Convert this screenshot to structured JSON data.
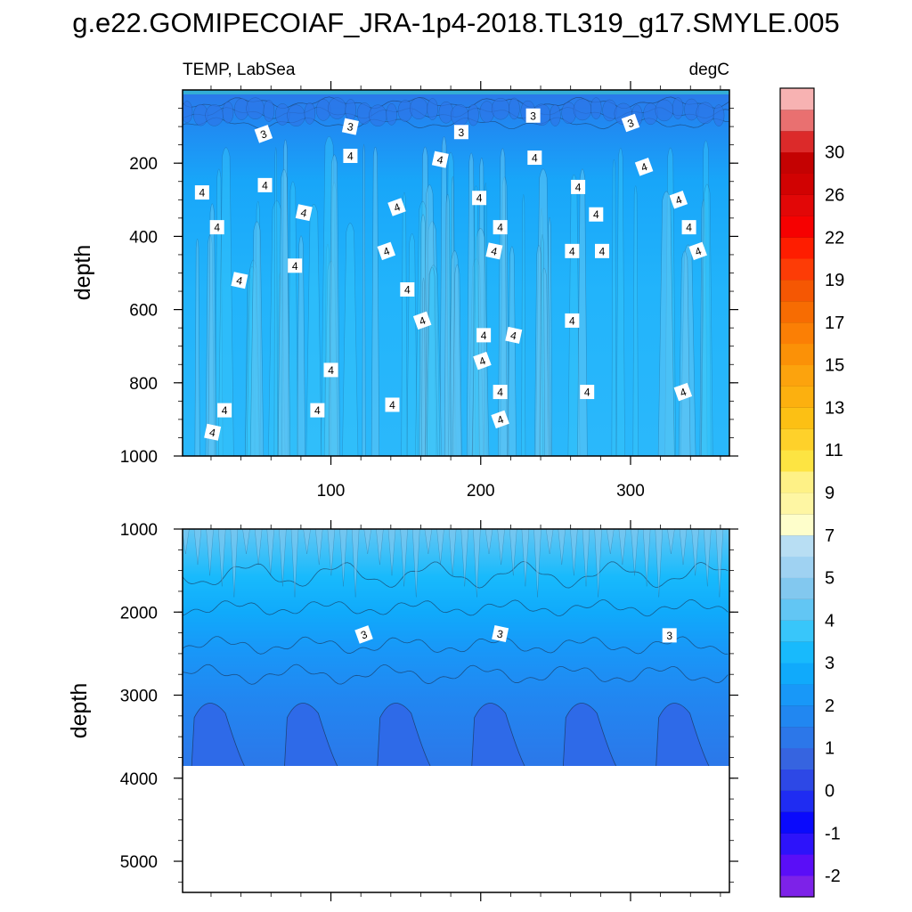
{
  "title": "g.e22.GOMIPECOIAF_JRA-1p4-2018.TL319_g17.SMYLE.005",
  "chart_data": [
    {
      "type": "heatmap",
      "name": "upper",
      "left_label": "TEMP, LabSea",
      "right_label": "degC",
      "ylabel": "depth",
      "xlim": [
        1,
        366
      ],
      "ylim": [
        1000,
        0
      ],
      "x_ticks": [
        100,
        200,
        300
      ],
      "y_ticks": [
        200,
        400,
        600,
        800,
        1000
      ],
      "field": "nearly uniform 3-4 degC with vertical streaks (seasonal signal)",
      "contour_labels": [
        {
          "x": 55,
          "y": 120,
          "text": "3"
        },
        {
          "x": 113,
          "y": 100,
          "text": "3"
        },
        {
          "x": 187,
          "y": 115,
          "text": "3"
        },
        {
          "x": 235,
          "y": 70,
          "text": "3"
        },
        {
          "x": 300,
          "y": 90,
          "text": "3"
        },
        {
          "x": 113,
          "y": 180,
          "text": "4"
        },
        {
          "x": 173,
          "y": 190,
          "text": "4"
        },
        {
          "x": 236,
          "y": 185,
          "text": "4"
        },
        {
          "x": 309,
          "y": 210,
          "text": "4"
        },
        {
          "x": 14,
          "y": 280,
          "text": "4"
        },
        {
          "x": 56,
          "y": 260,
          "text": "4"
        },
        {
          "x": 82,
          "y": 335,
          "text": "4"
        },
        {
          "x": 144,
          "y": 320,
          "text": "4"
        },
        {
          "x": 199,
          "y": 295,
          "text": "4"
        },
        {
          "x": 265,
          "y": 265,
          "text": "4"
        },
        {
          "x": 277,
          "y": 340,
          "text": "4"
        },
        {
          "x": 332,
          "y": 300,
          "text": "4"
        },
        {
          "x": 24,
          "y": 375,
          "text": "4"
        },
        {
          "x": 213,
          "y": 375,
          "text": "4"
        },
        {
          "x": 339,
          "y": 375,
          "text": "4"
        },
        {
          "x": 137,
          "y": 440,
          "text": "4"
        },
        {
          "x": 209,
          "y": 440,
          "text": "4"
        },
        {
          "x": 261,
          "y": 440,
          "text": "4"
        },
        {
          "x": 281,
          "y": 440,
          "text": "4"
        },
        {
          "x": 345,
          "y": 440,
          "text": "4"
        },
        {
          "x": 76,
          "y": 480,
          "text": "4"
        },
        {
          "x": 39,
          "y": 520,
          "text": "4"
        },
        {
          "x": 151,
          "y": 545,
          "text": "4"
        },
        {
          "x": 161,
          "y": 630,
          "text": "4"
        },
        {
          "x": 261,
          "y": 630,
          "text": "4"
        },
        {
          "x": 202,
          "y": 670,
          "text": "4"
        },
        {
          "x": 222,
          "y": 670,
          "text": "4"
        },
        {
          "x": 201,
          "y": 740,
          "text": "4"
        },
        {
          "x": 100,
          "y": 765,
          "text": "4"
        },
        {
          "x": 213,
          "y": 825,
          "text": "4"
        },
        {
          "x": 271,
          "y": 825,
          "text": "4"
        },
        {
          "x": 335,
          "y": 825,
          "text": "4"
        },
        {
          "x": 141,
          "y": 860,
          "text": "4"
        },
        {
          "x": 29,
          "y": 875,
          "text": "4"
        },
        {
          "x": 91,
          "y": 875,
          "text": "4"
        },
        {
          "x": 213,
          "y": 900,
          "text": "4"
        },
        {
          "x": 21,
          "y": 935,
          "text": "4"
        }
      ]
    },
    {
      "type": "heatmap",
      "name": "lower",
      "ylabel": "depth",
      "xlim": [
        1,
        366
      ],
      "ylim": [
        5375,
        1000
      ],
      "y_ticks": [
        1000,
        2000,
        3000,
        4000,
        5000
      ],
      "bottom_depth": 3875,
      "field": "4-5 degC near 1000 m cooling to 1-2 degC below 3000 m; no data below 3875 m",
      "contour_labels": [
        {
          "x": 122,
          "y": 2270,
          "text": "3"
        },
        {
          "x": 213,
          "y": 2260,
          "text": "3"
        },
        {
          "x": 326,
          "y": 2280,
          "text": "3"
        }
      ]
    }
  ],
  "colorbar": {
    "labels": [
      "-2",
      "-1",
      "0",
      "1",
      "2",
      "3",
      "4",
      "5",
      "7",
      "9",
      "11",
      "13",
      "15",
      "17",
      "19",
      "22",
      "26",
      "30"
    ],
    "colors": [
      "#7d22e8",
      "#5a0ef7",
      "#2d13fa",
      "#0a0afc",
      "#1f2cf2",
      "#2d48e6",
      "#3664e0",
      "#2c77e9",
      "#2187f1",
      "#1898f8",
      "#10aafb",
      "#18bafc",
      "#38c6fa",
      "#62c6f4",
      "#82c8ef",
      "#9fd2f2",
      "#b8def3",
      "#fefecb",
      "#fef6a3",
      "#fef186",
      "#fde442",
      "#fed12a",
      "#fcc014",
      "#fcb00f",
      "#fca30d",
      "#fb9107",
      "#fb7f05",
      "#f76c02",
      "#f55703",
      "#fd3c06",
      "#fe1d00",
      "#f60101",
      "#e20707",
      "#d10202",
      "#c40202",
      "#dc2a2a",
      "#e97070",
      "#f7b2b2"
    ]
  }
}
